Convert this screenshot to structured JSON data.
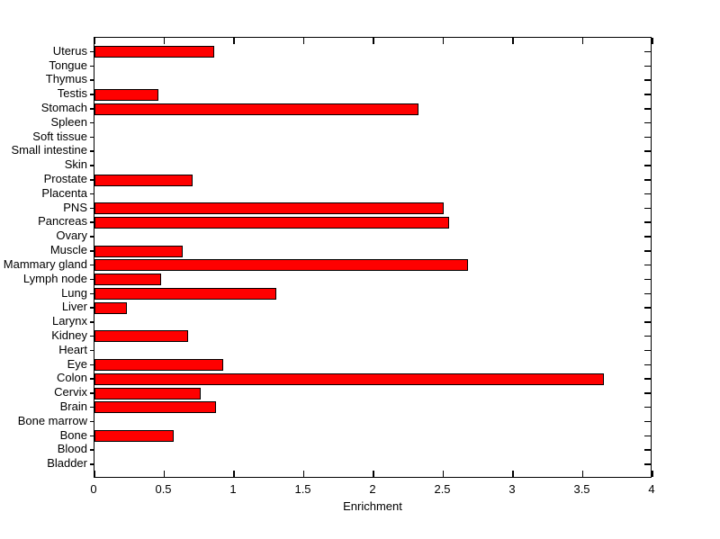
{
  "chart_data": {
    "type": "bar",
    "orientation": "horizontal",
    "xlabel": "Enrichment",
    "categories": [
      "Uterus",
      "Tongue",
      "Thymus",
      "Testis",
      "Stomach",
      "Spleen",
      "Soft tissue",
      "Small intestine",
      "Skin",
      "Prostate",
      "Placenta",
      "PNS",
      "Pancreas",
      "Ovary",
      "Muscle",
      "Mammary gland",
      "Lymph node",
      "Lung",
      "Liver",
      "Larynx",
      "Kidney",
      "Heart",
      "Eye",
      "Colon",
      "Cervix",
      "Brain",
      "Bone marrow",
      "Bone",
      "Blood",
      "Bladder"
    ],
    "values": [
      0.86,
      0,
      0,
      0.46,
      2.32,
      0,
      0,
      0,
      0,
      0.7,
      0,
      2.5,
      2.54,
      0,
      0.63,
      2.68,
      0.48,
      1.3,
      0.23,
      0,
      0.67,
      0,
      0.92,
      3.65,
      0.76,
      0.87,
      0,
      0.57,
      0,
      0
    ],
    "xlim": [
      0,
      4
    ],
    "xticks": [
      0,
      0.5,
      1,
      1.5,
      2,
      2.5,
      3,
      3.5,
      4
    ],
    "xtick_labels": [
      "0",
      "0.5",
      "1",
      "1.5",
      "2",
      "2.5",
      "3",
      "3.5",
      "4"
    ],
    "bar_color": "#ff0000",
    "bar_edge_color": "#000000",
    "axis_color": "#000000",
    "background_color": "#ffffff",
    "grid": false,
    "legend": null
  }
}
